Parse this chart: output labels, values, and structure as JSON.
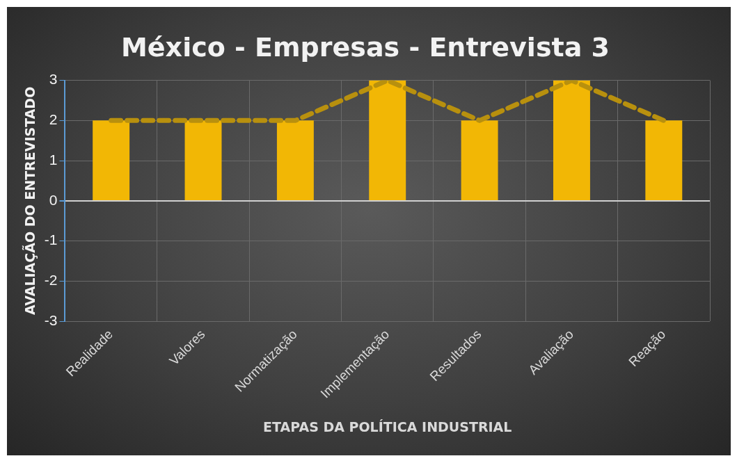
{
  "chart_data": {
    "type": "bar",
    "title": "México - Empresas - Entrevista 3",
    "xlabel": "ETAPAS DA POLÍTICA INDUSTRIAL",
    "ylabel": "AVALIAÇÃO DO ENTREVISTADO",
    "categories": [
      "Realidade",
      "Valores",
      "Normatização",
      "Implementação",
      "Resultados",
      "Avaliação",
      "Reação"
    ],
    "series": [
      {
        "color": "#f2b705",
        "values": [
          2,
          2,
          2,
          3,
          2,
          3,
          2
        ]
      },
      {
        "type": "line",
        "color": "#b8900e",
        "line_style": "dashed",
        "marker": "none",
        "values": [
          2,
          2,
          2,
          3,
          2,
          3,
          2
        ]
      }
    ],
    "ylim": [
      -3,
      3
    ],
    "yticks": [
      -3,
      -2,
      -1,
      0,
      1,
      2,
      3
    ],
    "grid": true,
    "legend": false
  }
}
